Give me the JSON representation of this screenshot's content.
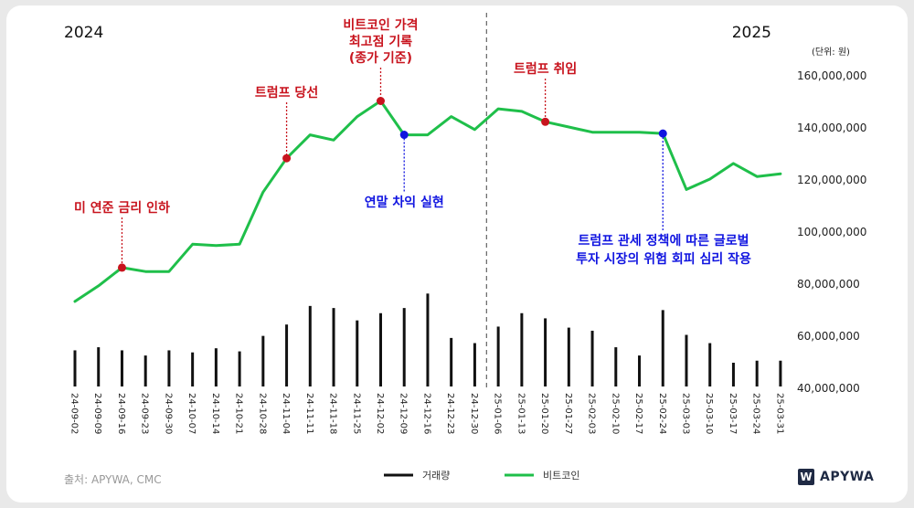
{
  "chart_data": {
    "type": "line+bar",
    "year_left": "2024",
    "year_right": "2025",
    "unit": "(단위: 원)",
    "x": [
      "24-09-02",
      "24-09-09",
      "24-09-16",
      "24-09-23",
      "24-09-30",
      "24-10-07",
      "24-10-14",
      "24-10-21",
      "24-10-28",
      "24-11-04",
      "24-11-11",
      "24-11-18",
      "24-11-25",
      "24-12-02",
      "24-12-09",
      "24-12-16",
      "24-12-23",
      "24-12-30",
      "25-01-06",
      "25-01-13",
      "25-01-20",
      "25-01-27",
      "25-02-03",
      "25-02-10",
      "25-02-17",
      "25-02-24",
      "25-03-03",
      "25-03-10",
      "25-03-17",
      "25-03-24",
      "25-03-31"
    ],
    "bitcoin": [
      73000000,
      79000000,
      86000000,
      84500000,
      84500000,
      95000000,
      94500000,
      95000000,
      115000000,
      128000000,
      137000000,
      135000000,
      144000000,
      150000000,
      137000000,
      137000000,
      144000000,
      139000000,
      147000000,
      146000000,
      142000000,
      140000000,
      138000000,
      138000000,
      138000000,
      137500000,
      116000000,
      120000000,
      126000000,
      121000000,
      122000000
    ],
    "volume_rel": [
      0.35,
      0.38,
      0.35,
      0.3,
      0.35,
      0.33,
      0.37,
      0.34,
      0.49,
      0.6,
      0.78,
      0.76,
      0.64,
      0.71,
      0.76,
      0.9,
      0.47,
      0.42,
      0.58,
      0.71,
      0.66,
      0.57,
      0.54,
      0.38,
      0.3,
      0.74,
      0.5,
      0.42,
      0.23,
      0.25,
      0.25
    ],
    "y_ticks": [
      40000000,
      60000000,
      80000000,
      100000000,
      120000000,
      140000000,
      160000000
    ],
    "y_tick_labels": [
      "40,000,000",
      "60,000,000",
      "80,000,000",
      "100,000,000",
      "120,000,000",
      "140,000,000",
      "160,000,000"
    ],
    "ylim": [
      40000000,
      160000000
    ],
    "legend": [
      {
        "label": "거래량",
        "color": "#111111"
      },
      {
        "label": "비트코인",
        "color": "#1fbf4a"
      }
    ],
    "annotations": [
      {
        "index": 2,
        "lines": [
          "미 연준 금리 인하"
        ],
        "color": "#c8141e"
      },
      {
        "index": 9,
        "lines": [
          "트럼프 당선"
        ],
        "color": "#c8141e"
      },
      {
        "index": 13,
        "lines": [
          "비트코인 가격",
          "최고점 기록",
          "(종가 기준)"
        ],
        "color": "#c8141e"
      },
      {
        "index": 14,
        "lines": [
          "연말 차익 실현"
        ],
        "color": "#1014e0"
      },
      {
        "index": 20,
        "lines": [
          "트럼프 취임"
        ],
        "color": "#c8141e"
      },
      {
        "index": 25,
        "lines": [
          "트럼프 관세 정책에 따른 글로벌",
          "투자 시장의 위험 회피 심리 작용"
        ],
        "color": "#1014e0"
      }
    ],
    "divider_index": 17.5
  },
  "source": "출처: APYWA, CMC",
  "brand": {
    "logo": "W",
    "name": "APYWA"
  },
  "colors": {
    "line": "#1fbf4a",
    "bar": "#111111",
    "red": "#c8141e",
    "blue": "#1014e0"
  }
}
